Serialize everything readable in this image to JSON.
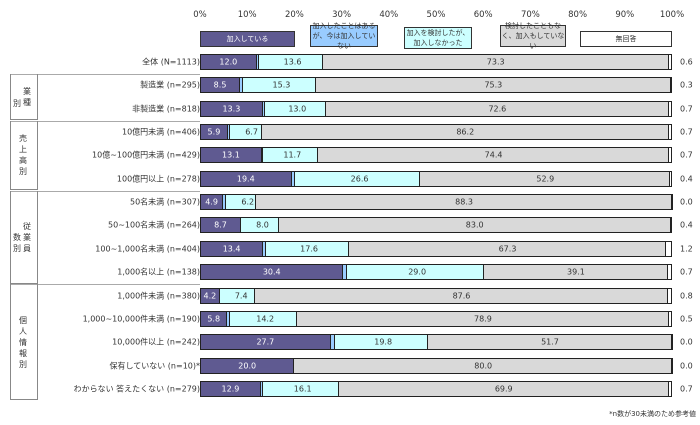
{
  "chart_data": {
    "type": "bar",
    "stacked": true,
    "orientation": "horizontal",
    "xlim": [
      0,
      100
    ],
    "ticks": [
      "0%",
      "10%",
      "20%",
      "30%",
      "40%",
      "50%",
      "60%",
      "70%",
      "80%",
      "90%",
      "100%"
    ],
    "legend": [
      {
        "name": "加入している",
        "color": "#5f5a91"
      },
      {
        "name": "加入したことはあるが、今は加入していない",
        "color": "#99ccff"
      },
      {
        "name": "加入を検討したが、加入しなかった",
        "color": "#ccffff"
      },
      {
        "name": "検討したこともなく、加入もしていない",
        "color": "#d9d9d9"
      },
      {
        "name": "無回答",
        "color": "#ffffff"
      }
    ],
    "groups": [
      {
        "name": "業種別",
        "label_a": "業種",
        "label_b": "別"
      },
      {
        "name": "売上高別",
        "label_a": "売上高別"
      },
      {
        "name": "従業員数別",
        "label_a": "従業員",
        "label_b": "数別"
      },
      {
        "name": "個人情報別",
        "label_a": "個人情報別"
      }
    ],
    "rows": [
      {
        "label": "全体 (N=1113)",
        "values": [
          12.0,
          0.4,
          13.6,
          73.3,
          0.6
        ]
      },
      {
        "label": "製造業 (n=295)",
        "values": [
          8.5,
          0.7,
          15.3,
          75.3,
          0.3
        ]
      },
      {
        "label": "非製造業 (n=818)",
        "values": [
          13.3,
          0.4,
          13.0,
          72.6,
          0.7
        ]
      },
      {
        "label": "10億円未満 (n=406)",
        "values": [
          5.9,
          0.5,
          6.7,
          86.2,
          0.7
        ]
      },
      {
        "label": "10億~100億円未満 (n=429)",
        "values": [
          13.1,
          0.2,
          11.7,
          74.4,
          0.7
        ]
      },
      {
        "label": "100億円以上 (n=278)",
        "values": [
          19.4,
          0.7,
          26.6,
          52.9,
          0.4
        ]
      },
      {
        "label": "50名未満 (n=307)",
        "values": [
          4.9,
          0.7,
          6.2,
          88.3,
          0.0
        ]
      },
      {
        "label": "50~100名未満 (n=264)",
        "values": [
          8.7,
          0.0,
          8.0,
          83.0,
          0.4
        ]
      },
      {
        "label": "100~1,000名未満 (n=404)",
        "values": [
          13.4,
          0.5,
          17.6,
          67.3,
          1.2
        ]
      },
      {
        "label": "1,000名以上 (n=138)",
        "values": [
          30.4,
          0.7,
          29.0,
          39.1,
          0.7
        ]
      },
      {
        "label": "1,000件未満 (n=380)",
        "values": [
          4.2,
          0.0,
          7.4,
          87.6,
          0.8
        ]
      },
      {
        "label": "1,000~10,000件未満 (n=190)",
        "values": [
          5.8,
          0.5,
          14.2,
          78.9,
          0.5
        ]
      },
      {
        "label": "10,000件以上 (n=242)",
        "values": [
          27.7,
          0.8,
          19.8,
          51.7,
          0.0
        ]
      },
      {
        "label": "保有していない (n=10)*",
        "values": [
          20.0,
          0.0,
          0.0,
          80.0,
          0.0
        ]
      },
      {
        "label": "わからない 答えたくない (n=279)",
        "values": [
          12.9,
          0.4,
          16.1,
          69.9,
          0.7
        ]
      }
    ],
    "note": "*n数が30未満のため参考値"
  }
}
